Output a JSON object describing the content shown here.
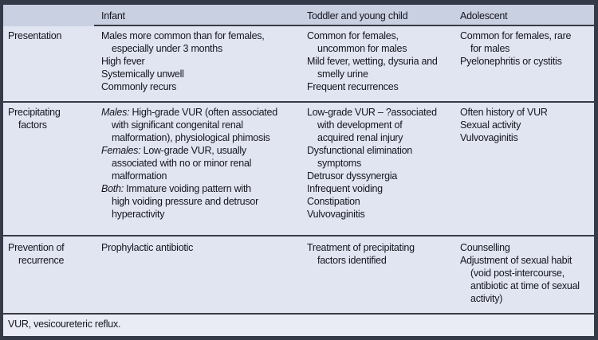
{
  "colors": {
    "outer_border": "#343a48",
    "line": "#3a3a45",
    "header_bg": "#c9d0e2",
    "body_bg": "#e1e5f1",
    "footer_bg": "#e9ecf4",
    "text": "#15151e"
  },
  "header": {
    "columns": [
      "Infant",
      "Toddler and young child",
      "Adolescent"
    ]
  },
  "rows": [
    {
      "label": [
        {
          "t": "Presentation"
        }
      ],
      "cells": [
        [
          {
            "t": "Males more common than for females,"
          },
          {
            "t": "especially under 3 months",
            "ind": true
          },
          {
            "t": "High fever"
          },
          {
            "t": "Systemically unwell"
          },
          {
            "t": "Commonly recurs"
          }
        ],
        [
          {
            "t": "Common for females,"
          },
          {
            "t": "uncommon for males",
            "ind": true
          },
          {
            "t": "Mild fever, wetting, dysuria and"
          },
          {
            "t": "smelly urine",
            "ind": true
          },
          {
            "t": "Frequent recurrences"
          }
        ],
        [
          {
            "t": "Common for females, rare"
          },
          {
            "t": "for males",
            "ind": true
          },
          {
            "t": "Pyelonephritis or cystitis"
          }
        ]
      ]
    },
    {
      "label": [
        {
          "t": "Precipitating"
        },
        {
          "t": "factors",
          "ind": true
        }
      ],
      "cells": [
        [
          {
            "lead": "Males:",
            "t": " High-grade VUR (often associated"
          },
          {
            "t": "with significant congenital renal",
            "ind": true
          },
          {
            "t": "malformation), physiological phimosis",
            "ind": true
          },
          {
            "lead": "Females:",
            "t": " Low-grade VUR, usually"
          },
          {
            "t": "associated with no or minor renal",
            "ind": true
          },
          {
            "t": "malformation",
            "ind": true
          },
          {
            "lead": "Both:",
            "t": " Immature voiding pattern with"
          },
          {
            "t": "high voiding pressure and detrusor",
            "ind": true
          },
          {
            "t": "hyperactivity",
            "ind": true
          }
        ],
        [
          {
            "t": "Low-grade VUR – ?associated"
          },
          {
            "t": "with development of",
            "ind": true
          },
          {
            "t": "acquired renal injury",
            "ind": true
          },
          {
            "t": "Dysfunctional elimination"
          },
          {
            "t": "symptoms",
            "ind": true
          },
          {
            "t": "Detrusor dyssynergia"
          },
          {
            "t": "Infrequent voiding"
          },
          {
            "t": "Constipation"
          },
          {
            "t": "Vulvovaginitis"
          }
        ],
        [
          {
            "t": "Often history of VUR"
          },
          {
            "t": "Sexual activity"
          },
          {
            "t": "Vulvovaginitis"
          }
        ]
      ]
    },
    {
      "label": [
        {
          "t": "Prevention of"
        },
        {
          "t": "recurrence",
          "ind": true
        }
      ],
      "cells": [
        [
          {
            "t": "Prophylactic antibiotic"
          }
        ],
        [
          {
            "t": "Treatment of precipitating"
          },
          {
            "t": "factors identified",
            "ind": true
          }
        ],
        [
          {
            "t": "Counselling"
          },
          {
            "t": "Adjustment of sexual habit"
          },
          {
            "t": "(void post-intercourse,",
            "ind": true
          },
          {
            "t": "antibiotic at time of sexual",
            "ind": true
          },
          {
            "t": "activity)",
            "ind": true
          }
        ]
      ]
    }
  ],
  "footnote": "VUR, vesicoureteric reflux."
}
